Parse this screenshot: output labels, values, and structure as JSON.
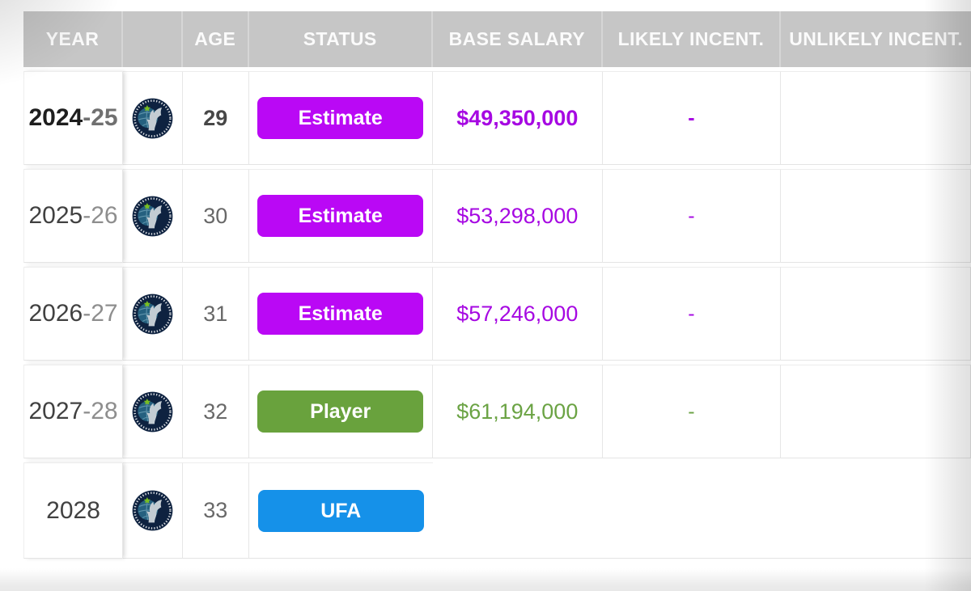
{
  "table": {
    "columns": [
      {
        "key": "year",
        "label": "YEAR"
      },
      {
        "key": "team",
        "label": ""
      },
      {
        "key": "age",
        "label": "AGE"
      },
      {
        "key": "status",
        "label": "STATUS"
      },
      {
        "key": "base-salary",
        "label": "BASE SALARY"
      },
      {
        "key": "likely-incent",
        "label": "LIKELY INCENT."
      },
      {
        "key": "unlikely-incent",
        "label": "UNLIKELY INCENT."
      }
    ],
    "rows": [
      {
        "year_main": "2024",
        "year_suffix": "-25",
        "team": "Minnesota Timberwolves",
        "age": "29",
        "status": "Estimate",
        "badge_color": "#ba08f5",
        "base_salary": "$49,350,000",
        "likely_incent": "-",
        "unlikely_incent": "",
        "accent": "#a608e2",
        "is_current": true,
        "is_last": false
      },
      {
        "year_main": "2025",
        "year_suffix": "-26",
        "team": "Minnesota Timberwolves",
        "age": "30",
        "status": "Estimate",
        "badge_color": "#ba08f5",
        "base_salary": "$53,298,000",
        "likely_incent": "-",
        "unlikely_incent": "",
        "accent": "#a608e2",
        "is_current": false,
        "is_last": false
      },
      {
        "year_main": "2026",
        "year_suffix": "-27",
        "team": "Minnesota Timberwolves",
        "age": "31",
        "status": "Estimate",
        "badge_color": "#ba08f5",
        "base_salary": "$57,246,000",
        "likely_incent": "-",
        "unlikely_incent": "",
        "accent": "#a608e2",
        "is_current": false,
        "is_last": false
      },
      {
        "year_main": "2027",
        "year_suffix": "-28",
        "team": "Minnesota Timberwolves",
        "age": "32",
        "status": "Player",
        "badge_color": "#69a23d",
        "base_salary": "$61,194,000",
        "likely_incent": "-",
        "unlikely_incent": "",
        "accent": "#6ba344",
        "is_current": false,
        "is_last": false
      },
      {
        "year_main": "2028",
        "year_suffix": "",
        "team": "Minnesota Timberwolves",
        "age": "33",
        "status": "UFA",
        "badge_color": "#1591e9",
        "base_salary": "",
        "likely_incent": "",
        "unlikely_incent": "",
        "accent": "#686868",
        "is_current": false,
        "is_last": true
      }
    ]
  },
  "team_logo_colors": {
    "outer_ring": "#0e2240",
    "globe": "#25607f",
    "globe_lines": "#6fa3b8",
    "wolf": "#c3ccd3",
    "star": "#78be21",
    "ring_text": "#ffffff"
  }
}
